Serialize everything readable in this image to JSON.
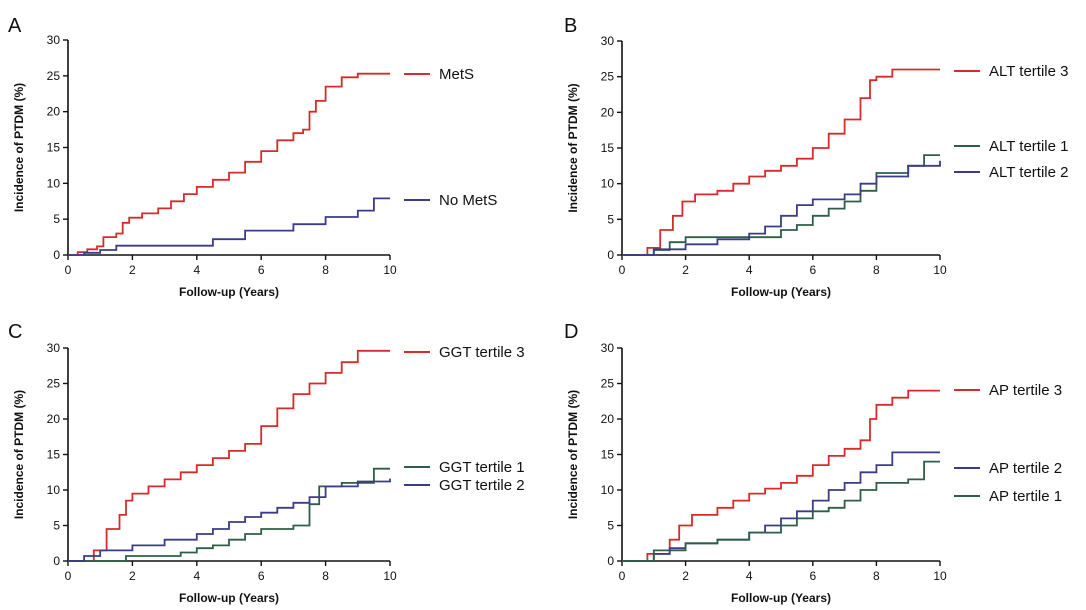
{
  "colors": {
    "red": "#d62b2b",
    "blue": "#3b3b8c",
    "green": "#2e5e47",
    "axis": "#111111"
  },
  "chart_data": [
    {
      "panel": "A",
      "type": "line",
      "step": true,
      "xlabel": "Follow-up  (Years)",
      "ylabel": "Incidence of PTDM  (%)",
      "xlim": [
        0,
        10
      ],
      "ylim": [
        0,
        30
      ],
      "xticks": [
        0,
        2,
        4,
        6,
        8,
        10
      ],
      "yticks": [
        0,
        5,
        10,
        15,
        20,
        25,
        30
      ],
      "grid": false,
      "series": [
        {
          "name": "MetS",
          "color": "#d62b2b",
          "x": [
            0,
            0.3,
            0.6,
            0.9,
            1.1,
            1.5,
            1.7,
            1.9,
            2.3,
            2.8,
            3.2,
            3.6,
            4.0,
            4.5,
            5.0,
            5.5,
            6.0,
            6.5,
            7.0,
            7.3,
            7.5,
            7.7,
            8.0,
            8.5,
            9.0,
            10.0
          ],
          "y": [
            0,
            0.4,
            0.8,
            1.2,
            2.5,
            3.0,
            4.5,
            5.2,
            5.8,
            6.5,
            7.5,
            8.5,
            9.5,
            10.5,
            11.5,
            13.0,
            14.5,
            16.0,
            17.0,
            17.5,
            20.0,
            21.5,
            23.5,
            24.8,
            25.3,
            25.3
          ]
        },
        {
          "name": "No MetS",
          "color": "#3b3b8c",
          "x": [
            0,
            0.5,
            1.0,
            1.5,
            3.5,
            4.5,
            5.5,
            7.0,
            8.0,
            9.0,
            9.5,
            10.0
          ],
          "y": [
            0,
            0.3,
            0.7,
            1.3,
            1.3,
            2.2,
            3.4,
            4.3,
            5.3,
            6.2,
            7.9,
            7.9
          ]
        }
      ]
    },
    {
      "panel": "B",
      "type": "line",
      "step": true,
      "xlabel": "Follow-up  (Years)",
      "ylabel": "Incidence of PTDM  (%)",
      "xlim": [
        0,
        10
      ],
      "ylim": [
        0,
        30
      ],
      "xticks": [
        0,
        2,
        4,
        6,
        8,
        10
      ],
      "yticks": [
        0,
        5,
        10,
        15,
        20,
        25,
        30
      ],
      "grid": false,
      "series": [
        {
          "name": "ALT tertile 3",
          "color": "#d62b2b",
          "x": [
            0,
            0.8,
            1.2,
            1.6,
            1.9,
            2.3,
            3.0,
            3.5,
            4.0,
            4.5,
            5.0,
            5.5,
            6.0,
            6.5,
            7.0,
            7.5,
            7.8,
            8.0,
            8.5,
            10.0
          ],
          "y": [
            0,
            1.0,
            3.5,
            5.5,
            7.5,
            8.5,
            9.0,
            10.0,
            11.0,
            11.8,
            12.5,
            13.5,
            15.0,
            17.0,
            19.0,
            22.0,
            24.5,
            25.0,
            26.0,
            26.0
          ]
        },
        {
          "name": "ALT tertile 1",
          "color": "#2e5e47",
          "x": [
            0,
            1.0,
            1.5,
            2.0,
            4.5,
            5.0,
            5.5,
            6.0,
            6.5,
            7.0,
            7.5,
            8.0,
            9.0,
            9.5,
            10.0
          ],
          "y": [
            0,
            0.7,
            1.8,
            2.5,
            2.5,
            3.5,
            4.2,
            5.5,
            6.5,
            7.5,
            9.0,
            11.5,
            12.5,
            14.0,
            14.0
          ]
        },
        {
          "name": "ALT tertile 2",
          "color": "#3b3b8c",
          "x": [
            0,
            1.0,
            2.0,
            3.0,
            4.0,
            4.5,
            5.0,
            5.5,
            6.0,
            7.0,
            7.5,
            8.0,
            9.0,
            10.0
          ],
          "y": [
            0,
            0.8,
            1.5,
            2.2,
            3.0,
            4.0,
            5.5,
            7.0,
            7.8,
            8.5,
            10.0,
            11.0,
            12.5,
            13.2
          ]
        }
      ]
    },
    {
      "panel": "C",
      "type": "line",
      "step": true,
      "xlabel": "Follow-up  (Years)",
      "ylabel": "Incidence of PTDM  (%)",
      "xlim": [
        0,
        10
      ],
      "ylim": [
        0,
        30
      ],
      "xticks": [
        0,
        2,
        4,
        6,
        8,
        10
      ],
      "yticks": [
        0,
        5,
        10,
        15,
        20,
        25,
        30
      ],
      "grid": false,
      "series": [
        {
          "name": "GGT tertile 3",
          "color": "#d62b2b",
          "x": [
            0,
            0.8,
            1.2,
            1.6,
            1.8,
            2.0,
            2.5,
            3.0,
            3.5,
            4.0,
            4.5,
            5.0,
            5.5,
            6.0,
            6.5,
            7.0,
            7.5,
            8.0,
            8.5,
            9.0,
            10.0
          ],
          "y": [
            0,
            1.5,
            4.5,
            6.5,
            8.5,
            9.5,
            10.5,
            11.5,
            12.5,
            13.5,
            14.5,
            15.5,
            16.5,
            19.0,
            21.5,
            23.5,
            25.0,
            26.5,
            28.0,
            29.6,
            29.6
          ]
        },
        {
          "name": "GGT tertile 1",
          "color": "#2e5e47",
          "x": [
            0,
            1.8,
            3.5,
            4.0,
            4.5,
            5.0,
            5.5,
            6.0,
            7.0,
            7.5,
            7.8,
            8.5,
            9.5,
            10.0
          ],
          "y": [
            0,
            0.7,
            1.2,
            1.8,
            2.2,
            3.0,
            3.8,
            4.5,
            5.0,
            8.0,
            10.5,
            11.0,
            13.0,
            13.0
          ]
        },
        {
          "name": "GGT tertile 2",
          "color": "#3b3b8c",
          "x": [
            0,
            0.5,
            1.0,
            2.0,
            3.0,
            4.0,
            4.5,
            5.0,
            5.5,
            6.0,
            6.5,
            7.0,
            7.5,
            8.0,
            9.0,
            10.0
          ],
          "y": [
            0,
            0.7,
            1.5,
            2.2,
            3.0,
            3.8,
            4.5,
            5.5,
            6.2,
            6.8,
            7.5,
            8.2,
            9.0,
            10.5,
            11.2,
            11.6
          ]
        }
      ]
    },
    {
      "panel": "D",
      "type": "line",
      "step": true,
      "xlabel": "Follow-up  (Years)",
      "ylabel": "Incidence of PTDM  (%)",
      "xlim": [
        0,
        10
      ],
      "ylim": [
        0,
        30
      ],
      "xticks": [
        0,
        2,
        4,
        6,
        8,
        10
      ],
      "yticks": [
        0,
        5,
        10,
        15,
        20,
        25,
        30
      ],
      "grid": false,
      "series": [
        {
          "name": "AP tertile 3",
          "color": "#d62b2b",
          "x": [
            0,
            0.8,
            1.5,
            1.8,
            2.2,
            3.0,
            3.5,
            4.0,
            4.5,
            5.0,
            5.5,
            6.0,
            6.5,
            7.0,
            7.5,
            7.8,
            8.0,
            8.5,
            9.0,
            10.0
          ],
          "y": [
            0,
            1.0,
            3.0,
            5.0,
            6.5,
            7.5,
            8.5,
            9.5,
            10.2,
            11.0,
            12.0,
            13.5,
            14.8,
            15.8,
            17.0,
            20.0,
            22.0,
            23.0,
            24.0,
            24.0
          ]
        },
        {
          "name": "AP tertile 2",
          "color": "#3b3b8c",
          "x": [
            0,
            1.0,
            1.5,
            2.0,
            3.0,
            4.0,
            4.5,
            5.0,
            5.5,
            6.0,
            6.5,
            7.0,
            7.5,
            8.0,
            8.5,
            10.0
          ],
          "y": [
            0,
            1.0,
            1.8,
            2.5,
            3.0,
            4.0,
            5.0,
            6.0,
            7.0,
            8.5,
            10.0,
            11.0,
            12.5,
            13.5,
            15.3,
            15.3
          ]
        },
        {
          "name": "AP tertile 1",
          "color": "#2e5e47",
          "x": [
            0,
            1.0,
            2.0,
            3.0,
            4.0,
            5.0,
            5.5,
            6.0,
            6.5,
            7.0,
            7.5,
            8.0,
            9.0,
            9.5,
            10.0
          ],
          "y": [
            0,
            1.5,
            2.5,
            3.0,
            4.0,
            5.0,
            6.0,
            7.0,
            7.5,
            8.5,
            10.0,
            11.0,
            11.5,
            14.0,
            14.0
          ]
        }
      ]
    }
  ]
}
